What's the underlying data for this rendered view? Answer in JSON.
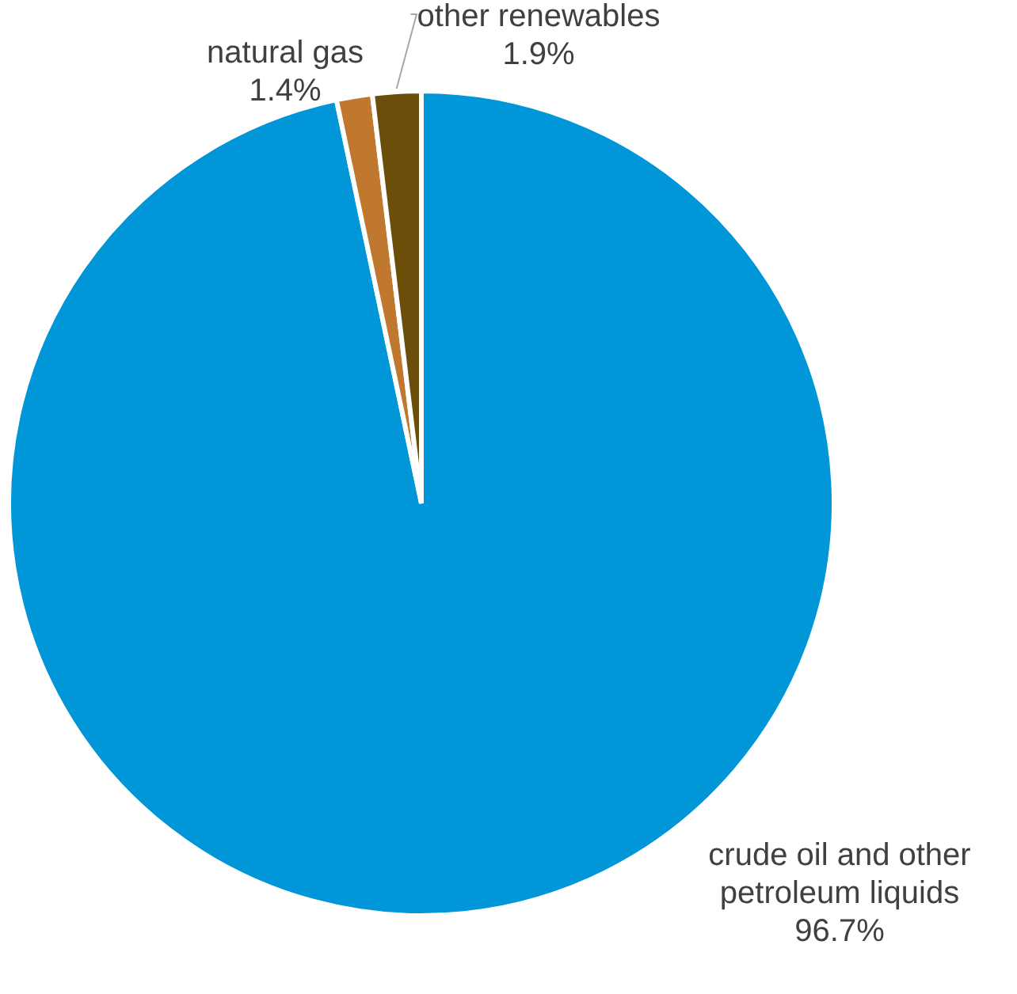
{
  "chart_data": {
    "type": "pie",
    "categories": [
      "crude oil and other petroleum liquids",
      "natural gas",
      "other renewables"
    ],
    "values": [
      96.7,
      1.4,
      1.9
    ],
    "colors": [
      "#0096d7",
      "#c0782f",
      "#6b4e0a"
    ],
    "value_labels": [
      "96.7%",
      "1.4%",
      "1.9%"
    ],
    "legend": false
  }
}
